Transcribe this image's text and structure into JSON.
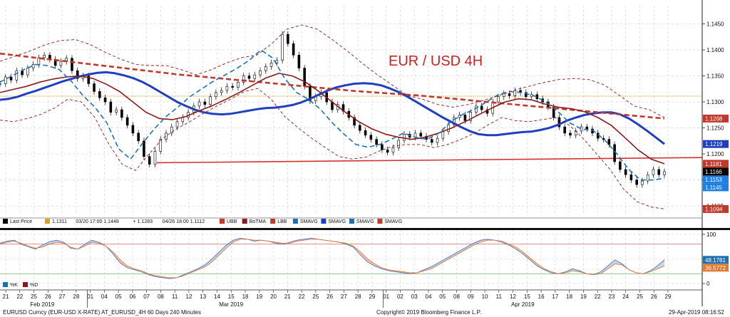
{
  "chart_data": [
    {
      "type": "line",
      "title": "EUR / USD 4H",
      "ylim": [
        1.1085,
        1.1485
      ],
      "y_ticks": [
        "1.1450",
        "1.1400",
        "1.1350",
        "1.1300",
        "1.1250",
        "1.1200",
        "1.1150",
        "1.1100"
      ],
      "price_badges": [
        {
          "label": "1.1268",
          "value": 1.1268,
          "color": "#c0392b"
        },
        {
          "label": "1.1219",
          "value": 1.1219,
          "color": "#1f3fbf"
        },
        {
          "label": "1.1181",
          "value": 1.1181,
          "color": "#c0392b"
        },
        {
          "label": "1.1166",
          "value": 1.1166,
          "color": "#000000"
        },
        {
          "label": "1.1153",
          "value": 1.1153,
          "color": "#1f7fe0"
        },
        {
          "label": "1.1145",
          "value": 1.1145,
          "color": "#1f7fe0"
        },
        {
          "label": "1.1094",
          "value": 1.1094,
          "color": "#c0392b"
        }
      ],
      "reference_line": {
        "value": 1.1311,
        "color": "#e69c1a"
      },
      "series": [
        {
          "color": "#000000",
          "style": "candles",
          "values": [
            1.1335,
            1.1348,
            1.1342,
            1.136,
            1.1352,
            1.1365,
            1.1372,
            1.1385,
            1.139,
            1.1382,
            1.137,
            1.1378,
            1.1384,
            1.136,
            1.1345,
            1.135,
            1.1335,
            1.132,
            1.1308,
            1.13,
            1.128,
            1.1285,
            1.127,
            1.1255,
            1.124,
            1.1225,
            1.1195,
            1.118,
            1.1205,
            1.1228,
            1.124,
            1.1252,
            1.1262,
            1.127,
            1.128,
            1.1292,
            1.13,
            1.1295,
            1.131,
            1.1318,
            1.1322,
            1.133,
            1.1328,
            1.1338,
            1.135,
            1.1345,
            1.1352,
            1.136,
            1.1368,
            1.1375,
            1.138,
            1.143,
            1.1412,
            1.139,
            1.1365,
            1.133,
            1.1302,
            1.131,
            1.1318,
            1.13,
            1.1285,
            1.1295,
            1.1282,
            1.127,
            1.1255,
            1.1245,
            1.1236,
            1.1228,
            1.1218,
            1.1208,
            1.1203,
            1.1212,
            1.1226,
            1.1238,
            1.1232,
            1.124,
            1.1234,
            1.1228,
            1.1222,
            1.123,
            1.1243,
            1.1256,
            1.127,
            1.1275,
            1.1264,
            1.128,
            1.1292,
            1.1285,
            1.1278,
            1.13,
            1.131,
            1.1316,
            1.1312,
            1.1322,
            1.1318,
            1.131,
            1.1314,
            1.1306,
            1.13,
            1.129,
            1.127,
            1.1252,
            1.124,
            1.1236,
            1.1244,
            1.1252,
            1.1248,
            1.124,
            1.123,
            1.1228,
            1.1218,
            1.1185,
            1.117,
            1.116,
            1.115,
            1.1141,
            1.1148,
            1.116,
            1.117,
            1.116,
            1.1166
          ]
        },
        {
          "color": "#1f3fbf",
          "style": "solid",
          "values": [
            1.1304,
            1.1306,
            1.131,
            1.1316,
            1.1321,
            1.1327,
            1.1333,
            1.1339,
            1.1344,
            1.1349,
            1.1353,
            1.1356,
            1.1357,
            1.1355,
            1.1351,
            1.1346,
            1.1339,
            1.133,
            1.132,
            1.131,
            1.13,
            1.1292,
            1.1285,
            1.128,
            1.1277,
            1.1276,
            1.1277,
            1.128,
            1.1283,
            1.1286,
            1.1288,
            1.1289,
            1.1291,
            1.1294,
            1.1299,
            1.1306,
            1.1314,
            1.1322,
            1.1328,
            1.1332,
            1.1335,
            1.1336,
            1.1335,
            1.1332,
            1.1326,
            1.1319,
            1.131,
            1.13,
            1.129,
            1.128,
            1.127,
            1.1261,
            1.1252,
            1.1244,
            1.1238,
            1.1236,
            1.1236,
            1.1238,
            1.124,
            1.1242,
            1.1243,
            1.1246,
            1.125,
            1.1256,
            1.1264,
            1.127,
            1.1275,
            1.1278,
            1.128,
            1.128,
            1.1276,
            1.1268,
            1.1257,
            1.1245,
            1.1232,
            1.1219
          ]
        },
        {
          "color": "#c0392b",
          "style": "dashed",
          "values": [
            1.1393,
            1.1388,
            1.1383,
            1.1378,
            1.1373,
            1.1368,
            1.1363,
            1.1358,
            1.1353,
            1.1349,
            1.1345,
            1.1341,
            1.1337,
            1.1333,
            1.1329,
            1.1325,
            1.1321,
            1.1318,
            1.1315,
            1.1312,
            1.1308,
            1.1304,
            1.13,
            1.1296,
            1.1292,
            1.1288,
            1.1284,
            1.128,
            1.1276,
            1.1272,
            1.1268
          ]
        },
        {
          "color": "#8b1a1a",
          "style": "solid",
          "values": [
            1.1318,
            1.1324,
            1.133,
            1.1338,
            1.1344,
            1.1348,
            1.135,
            1.1345,
            1.1334,
            1.132,
            1.13,
            1.128,
            1.1268,
            1.1266,
            1.1272,
            1.1283,
            1.1293,
            1.1305,
            1.1318,
            1.1332,
            1.1346,
            1.1355,
            1.135,
            1.1338,
            1.132,
            1.13,
            1.128,
            1.1262,
            1.1248,
            1.1238,
            1.1232,
            1.1228,
            1.1232,
            1.124,
            1.125,
            1.1262,
            1.1275,
            1.1288,
            1.13,
            1.1306,
            1.1304,
            1.1296,
            1.129,
            1.1287,
            1.1281,
            1.127,
            1.1255,
            1.1232,
            1.1208,
            1.119,
            1.1181
          ]
        },
        {
          "color": "#1f6fb5",
          "style": "dashed",
          "values": [
            1.1338,
            1.135,
            1.1362,
            1.1372,
            1.137,
            1.1362,
            1.134,
            1.1312,
            1.129,
            1.126,
            1.121,
            1.119,
            1.122,
            1.1248,
            1.1272,
            1.129,
            1.131,
            1.1325,
            1.134,
            1.1352,
            1.1365,
            1.138,
            1.14,
            1.1384,
            1.1345,
            1.1318,
            1.1305,
            1.1286,
            1.126,
            1.1238,
            1.1218,
            1.1213,
            1.1218,
            1.1228,
            1.124,
            1.1232,
            1.1228,
            1.124,
            1.1262,
            1.1276,
            1.1286,
            1.13,
            1.1314,
            1.132,
            1.1318,
            1.1312,
            1.13,
            1.1282,
            1.126,
            1.1248,
            1.1245,
            1.1226,
            1.12,
            1.117,
            1.115,
            1.115,
            1.1153
          ]
        },
        {
          "color": "#8b1a1a",
          "style": "dotted",
          "values": [
            1.1378,
            1.1388,
            1.1398,
            1.141,
            1.1418,
            1.142,
            1.141,
            1.1395,
            1.1382,
            1.1372,
            1.137,
            1.137,
            1.1362,
            1.1352,
            1.1362,
            1.1375,
            1.1385,
            1.139,
            1.1412,
            1.144,
            1.1448,
            1.144,
            1.142,
            1.1398,
            1.1374,
            1.1352,
            1.1332,
            1.1312,
            1.1305,
            1.1295,
            1.129,
            1.1295,
            1.1303,
            1.1312,
            1.1322,
            1.133,
            1.1337,
            1.1343,
            1.1345,
            1.1343,
            1.1333,
            1.1313,
            1.1292,
            1.1285,
            1.127
          ]
        },
        {
          "color": "#8b1a1a",
          "style": "dotted",
          "values": [
            1.1265,
            1.1262,
            1.1268,
            1.1276,
            1.1288,
            1.1305,
            1.13,
            1.127,
            1.122,
            1.118,
            1.1168,
            1.12,
            1.123,
            1.1248,
            1.1262,
            1.1278,
            1.1292,
            1.1305,
            1.132,
            1.1326,
            1.1305,
            1.1272,
            1.125,
            1.123,
            1.1212,
            1.1195,
            1.119,
            1.1194,
            1.1206,
            1.1215,
            1.1218,
            1.1218,
            1.1212,
            1.1218,
            1.1228,
            1.124,
            1.1256,
            1.127,
            1.1264,
            1.1262,
            1.1266,
            1.127,
            1.1255,
            1.123,
            1.12,
            1.117,
            1.1132,
            1.1108,
            1.1098,
            1.1094
          ]
        }
      ],
      "support_line": {
        "from": 1.1183,
        "to": 1.1193,
        "color": "#d63030"
      }
    },
    {
      "type": "line",
      "ylim": [
        -10,
        110
      ],
      "y_ticks": [
        "100",
        "50",
        "0"
      ],
      "thresholds": [
        {
          "value": 80,
          "color": "#d06060"
        },
        {
          "value": 20,
          "color": "#66b266"
        }
      ],
      "badges": [
        {
          "label": "48.1781",
          "value": 48.1781,
          "color": "#1f6fb5"
        },
        {
          "label": "36.5772",
          "value": 36.5772,
          "color": "#e07a30"
        }
      ],
      "series": [
        {
          "color": "#4a70c4",
          "values": [
            82,
            86,
            88,
            80,
            75,
            70,
            78,
            85,
            88,
            84,
            72,
            70,
            80,
            88,
            84,
            76,
            60,
            42,
            32,
            28,
            24,
            18,
            14,
            12,
            10,
            12,
            18,
            24,
            30,
            38,
            50,
            64,
            78,
            88,
            92,
            90,
            86,
            88,
            86,
            82,
            80,
            84,
            88,
            90,
            92,
            90,
            88,
            86,
            84,
            80,
            74,
            58,
            44,
            36,
            30,
            26,
            24,
            22,
            20,
            22,
            28,
            34,
            42,
            50,
            58,
            66,
            74,
            82,
            88,
            90,
            88,
            84,
            78,
            70,
            60,
            48,
            36,
            28,
            22,
            20,
            24,
            30,
            26,
            20,
            18,
            24,
            36,
            48,
            40,
            28,
            22,
            20,
            26,
            36,
            48
          ]
        },
        {
          "color": "#e07a30",
          "values": [
            80,
            84,
            86,
            82,
            76,
            72,
            74,
            80,
            84,
            82,
            74,
            70,
            76,
            84,
            82,
            76,
            64,
            48,
            36,
            30,
            26,
            20,
            16,
            14,
            12,
            12,
            16,
            22,
            28,
            34,
            44,
            58,
            72,
            84,
            90,
            90,
            88,
            88,
            86,
            84,
            82,
            82,
            86,
            88,
            90,
            90,
            88,
            86,
            84,
            82,
            76,
            64,
            50,
            40,
            32,
            28,
            26,
            24,
            22,
            22,
            26,
            30,
            38,
            46,
            54,
            62,
            70,
            78,
            84,
            88,
            88,
            86,
            80,
            74,
            64,
            52,
            40,
            30,
            24,
            20,
            22,
            26,
            24,
            20,
            18,
            20,
            30,
            40,
            38,
            28,
            22,
            20,
            24,
            30,
            36
          ]
        }
      ]
    }
  ],
  "x_ticks_top": [
    "21",
    "22",
    "25",
    "26",
    "27",
    "28",
    "01",
    "04",
    "05",
    "06",
    "07",
    "08",
    "11",
    "12",
    "13",
    "14",
    "15",
    "18",
    "19",
    "20",
    "21",
    "22",
    "25",
    "26",
    "27",
    "28",
    "29",
    "01",
    "02",
    "03",
    "04",
    "05",
    "08",
    "09",
    "10",
    "11",
    "12",
    "15",
    "16",
    "17",
    "18",
    "19",
    "22",
    "23",
    "24",
    "25",
    "26",
    "29"
  ],
  "month_labels": [
    "Feb 2019",
    "Mar 2019",
    "Apr 2019"
  ],
  "legend": [
    {
      "icon": "#000000",
      "label": "Last Price"
    },
    {
      "icon": "#e69c1a",
      "label": "1.1311"
    },
    {
      "icon": "",
      "label": "03/20 17:00 1.1448"
    },
    {
      "icon": "",
      "label": "+ 1.1283"
    },
    {
      "icon": "",
      "label": "04/26 18:00 1.1112"
    },
    {
      "icon": "#c0392b",
      "label": "UBB"
    },
    {
      "icon": "#8b1a1a",
      "label": "BoTMA"
    },
    {
      "icon": "#c0392b",
      "label": "LBB"
    },
    {
      "icon": "#1f6fb5",
      "label": "SMAVG"
    },
    {
      "icon": "#1f3fbf",
      "label": "SMAVG"
    },
    {
      "icon": "#1f6fb5",
      "label": "SMAVG"
    },
    {
      "icon": "#c0392b",
      "label": "SMAVG"
    }
  ],
  "sub_legend": [
    {
      "icon": "#1f6fb5",
      "label": "%K"
    },
    {
      "icon": "#8b1a1a",
      "label": "%D"
    }
  ],
  "footer": {
    "left": "EURUSD Curncy (EUR-USD X-RATE) AT_EURUSD_4H 60 Days 240 Minutes",
    "center": "Copyright© 2019 Bloomberg Finance L.P.",
    "right": "29-Apr-2019 08:16:52"
  }
}
